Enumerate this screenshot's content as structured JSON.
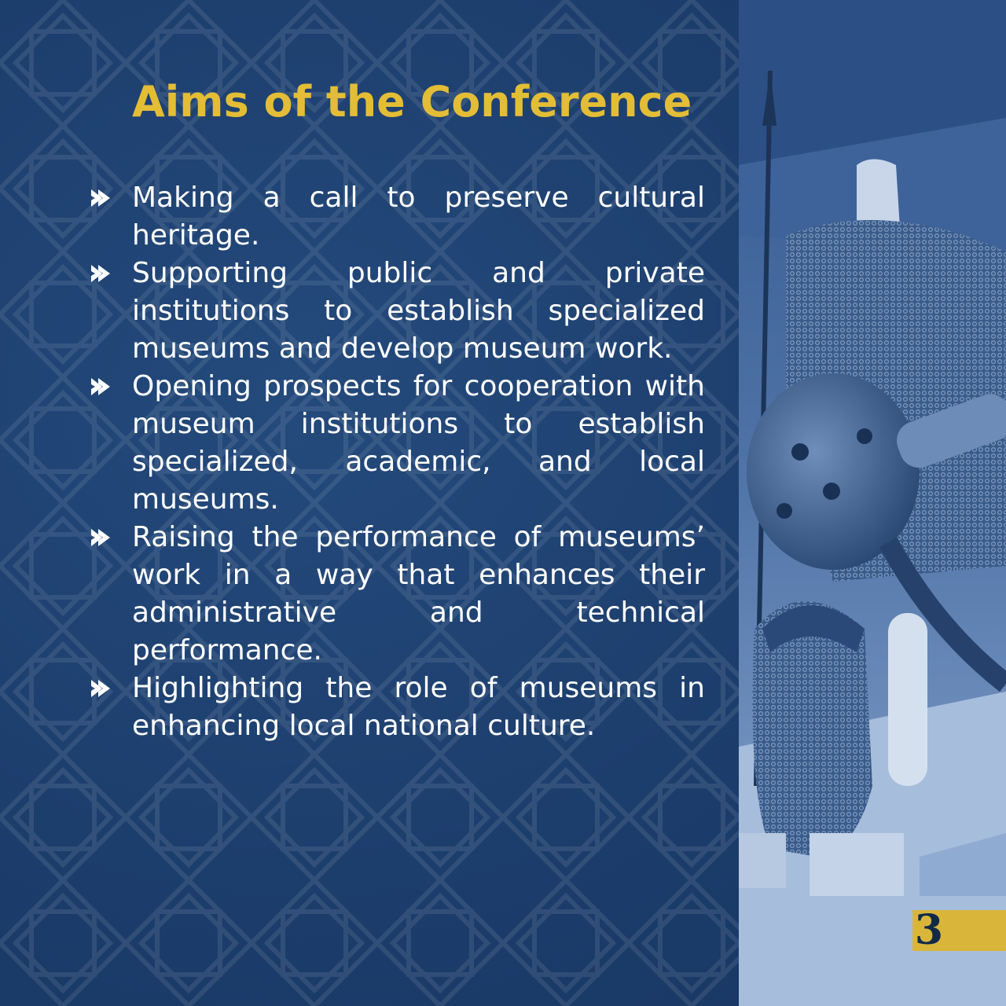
{
  "title": "Aims of the Conference",
  "aims": [
    "Making a call to preserve cultural heritage.",
    "Supporting public and private institutions to establish specialized museums and develop museum work.",
    "Opening prospects for cooperation with museum institutions to establish specialized, academic, and local museums.",
    "Raising the performance of museums’ work in a way that enhances their administrative and technical performance.",
    "Highlighting the role of museums in enhancing local national culture."
  ],
  "page_number": "3",
  "icons": {
    "bullet": "double-chevron-right-icon",
    "photo": "museum-armor-photo"
  },
  "colors": {
    "background": "#1d3f6e",
    "title": "#e3bd35",
    "text": "#ffffff",
    "accent": "#d9b53a",
    "page_number": "#12294a"
  }
}
